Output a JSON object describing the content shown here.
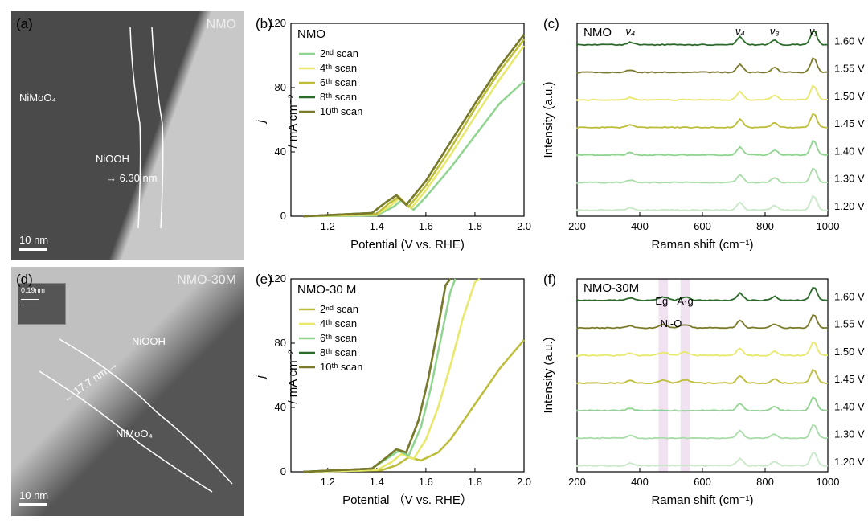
{
  "panels": {
    "a": {
      "label": "(a)",
      "title": "NMO",
      "material1": "NiMoO₄",
      "material2": "NiOOH",
      "thickness": "6.30 nm",
      "scale": "10 nm"
    },
    "b": {
      "label": "(b)",
      "title": "NMO",
      "xlabel": "Potential (V vs. RHE)",
      "ylabel": "j / mA cm⁻²",
      "xlim": [
        1.05,
        2.0
      ],
      "ylim": [
        0,
        120
      ],
      "xticks": [
        1.2,
        1.4,
        1.6,
        1.8,
        2.0
      ],
      "yticks": [
        0,
        40,
        80,
        120
      ],
      "series": [
        {
          "name": "2ⁿᵈ scan",
          "color": "#8fd48f",
          "pts": [
            [
              1.1,
              0
            ],
            [
              1.4,
              0.5
            ],
            [
              1.47,
              6
            ],
            [
              1.5,
              10
            ],
            [
              1.55,
              4
            ],
            [
              1.6,
              12
            ],
            [
              1.7,
              30
            ],
            [
              1.8,
              50
            ],
            [
              1.9,
              70
            ],
            [
              2.0,
              84
            ]
          ]
        },
        {
          "name": "4ᵗʰ scan",
          "color": "#e8e86b",
          "pts": [
            [
              1.1,
              0
            ],
            [
              1.4,
              1
            ],
            [
              1.46,
              7
            ],
            [
              1.49,
              11
            ],
            [
              1.54,
              5
            ],
            [
              1.6,
              16
            ],
            [
              1.7,
              38
            ],
            [
              1.8,
              62
            ],
            [
              1.9,
              85
            ],
            [
              2.0,
              106
            ]
          ]
        },
        {
          "name": "6ᵗʰ scan",
          "color": "#bdbd3a",
          "pts": [
            [
              1.1,
              0
            ],
            [
              1.4,
              1.5
            ],
            [
              1.45,
              8
            ],
            [
              1.49,
              12
            ],
            [
              1.53,
              6
            ],
            [
              1.6,
              19
            ],
            [
              1.7,
              42
            ],
            [
              1.8,
              67
            ],
            [
              1.9,
              90
            ],
            [
              2.0,
              110
            ]
          ]
        },
        {
          "name": "8ᵗʰ scan",
          "color": "#2a6b2a",
          "pts": [
            [
              1.1,
              0
            ],
            [
              1.38,
              2
            ],
            [
              1.44,
              9
            ],
            [
              1.48,
              13
            ],
            [
              1.52,
              7
            ],
            [
              1.6,
              22
            ],
            [
              1.7,
              46
            ],
            [
              1.8,
              70
            ],
            [
              1.9,
              93
            ],
            [
              2.0,
              113
            ]
          ]
        },
        {
          "name": "10ᵗʰ scan",
          "color": "#7a7a2a",
          "pts": [
            [
              1.1,
              0
            ],
            [
              1.38,
              2
            ],
            [
              1.44,
              9
            ],
            [
              1.48,
              13
            ],
            [
              1.52,
              7
            ],
            [
              1.6,
              22
            ],
            [
              1.7,
              46
            ],
            [
              1.8,
              70
            ],
            [
              1.9,
              93
            ],
            [
              2.0,
              113
            ]
          ]
        }
      ]
    },
    "c": {
      "label": "(c)",
      "title": "NMO",
      "xlabel": "Raman shift (cm⁻¹)",
      "ylabel": "Intensity (a.u.)",
      "xlim": [
        200,
        1000
      ],
      "xticks": [
        200,
        400,
        600,
        800,
        1000
      ],
      "voltages": [
        "1.60 V",
        "1.55 V",
        "1.50 V",
        "1.45 V",
        "1.40 V",
        "1.30 V",
        "1.20 V"
      ],
      "colors": [
        "#2a6b2a",
        "#7a7a2a",
        "#e8e86b",
        "#bdbd3a",
        "#8fd48f",
        "#a8dca8",
        "#c8e8c8"
      ],
      "peaks": [
        {
          "x": 370,
          "h": 3,
          "label": "ν₄"
        },
        {
          "x": 720,
          "h": 10,
          "label": "ν₄"
        },
        {
          "x": 830,
          "h": 6,
          "label": "ν₃"
        },
        {
          "x": 955,
          "h": 18,
          "label": "ν₁"
        }
      ],
      "highlight": null
    },
    "d": {
      "label": "(d)",
      "title": "NMO-30M",
      "material1": "NiMoO₄",
      "material2": "NiOOH",
      "thickness": "17.7 nm",
      "scale": "10 nm",
      "inset": "0.19nm"
    },
    "e": {
      "label": "(e)",
      "title": "NMO-30 M",
      "xlabel": "Potential （V vs. RHE）",
      "ylabel": "j / mA cm⁻²",
      "xlim": [
        1.05,
        2.0
      ],
      "ylim": [
        0,
        120
      ],
      "xticks": [
        1.2,
        1.4,
        1.6,
        1.8,
        2.0
      ],
      "yticks": [
        0,
        40,
        80,
        120
      ],
      "series": [
        {
          "name": "2ⁿᵈ scan",
          "color": "#bdbd3a",
          "pts": [
            [
              1.1,
              0
            ],
            [
              1.42,
              1
            ],
            [
              1.48,
              4
            ],
            [
              1.53,
              9
            ],
            [
              1.58,
              7
            ],
            [
              1.65,
              12
            ],
            [
              1.7,
              20
            ],
            [
              1.8,
              42
            ],
            [
              1.9,
              64
            ],
            [
              2.0,
              82
            ]
          ]
        },
        {
          "name": "4ᵗʰ scan",
          "color": "#e8e86b",
          "pts": [
            [
              1.1,
              0
            ],
            [
              1.4,
              1
            ],
            [
              1.46,
              6
            ],
            [
              1.5,
              11
            ],
            [
              1.55,
              8
            ],
            [
              1.6,
              20
            ],
            [
              1.65,
              40
            ],
            [
              1.7,
              66
            ],
            [
              1.75,
              95
            ],
            [
              1.8,
              118
            ],
            [
              1.82,
              120
            ]
          ]
        },
        {
          "name": "6ᵗʰ scan",
          "color": "#8fd48f",
          "pts": [
            [
              1.1,
              0
            ],
            [
              1.38,
              2
            ],
            [
              1.44,
              8
            ],
            [
              1.49,
              13
            ],
            [
              1.53,
              10
            ],
            [
              1.58,
              28
            ],
            [
              1.62,
              52
            ],
            [
              1.66,
              82
            ],
            [
              1.7,
              112
            ],
            [
              1.72,
              120
            ]
          ]
        },
        {
          "name": "8ᵗʰ scan",
          "color": "#2a6b2a",
          "pts": [
            [
              1.1,
              0
            ],
            [
              1.38,
              2
            ],
            [
              1.44,
              9
            ],
            [
              1.48,
              14
            ],
            [
              1.52,
              12
            ],
            [
              1.57,
              32
            ],
            [
              1.61,
              58
            ],
            [
              1.65,
              90
            ],
            [
              1.68,
              116
            ],
            [
              1.7,
              120
            ]
          ]
        },
        {
          "name": "10ᵗʰ scan",
          "color": "#7a7a2a",
          "pts": [
            [
              1.1,
              0
            ],
            [
              1.38,
              2
            ],
            [
              1.44,
              9
            ],
            [
              1.48,
              14
            ],
            [
              1.52,
              12
            ],
            [
              1.57,
              32
            ],
            [
              1.61,
              58
            ],
            [
              1.65,
              90
            ],
            [
              1.68,
              116
            ],
            [
              1.7,
              120
            ]
          ]
        }
      ]
    },
    "f": {
      "label": "(f)",
      "title": "NMO-30M",
      "xlabel": "Raman shift (cm⁻¹)",
      "ylabel": "Intensity (a.u.)",
      "xlim": [
        200,
        1000
      ],
      "xticks": [
        200,
        400,
        600,
        800,
        1000
      ],
      "voltages": [
        "1.60 V",
        "1.55 V",
        "1.50 V",
        "1.45 V",
        "1.40 V",
        "1.30 V",
        "1.20 V"
      ],
      "colors": [
        "#2a6b2a",
        "#7a7a2a",
        "#e8e86b",
        "#bdbd3a",
        "#8fd48f",
        "#a8dca8",
        "#c8e8c8"
      ],
      "peaks": [
        {
          "x": 370,
          "h": 3
        },
        {
          "x": 720,
          "h": 9
        },
        {
          "x": 830,
          "h": 5
        },
        {
          "x": 955,
          "h": 17
        }
      ],
      "highlight": {
        "bands": [
          [
            460,
            490
          ],
          [
            530,
            560
          ]
        ],
        "labels": [
          {
            "x": 470,
            "text": "Eg"
          },
          {
            "x": 545,
            "text": "A₁g"
          },
          {
            "x": 500,
            "text": "Ni-O",
            "below": true
          }
        ]
      }
    }
  }
}
